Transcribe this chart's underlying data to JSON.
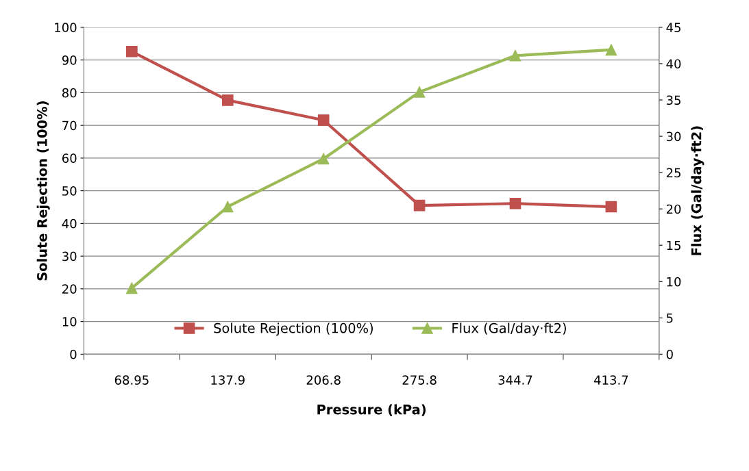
{
  "chart_data": {
    "type": "line",
    "xlabel": "Pressure (kPa)",
    "ylabel": "Solute Rejection (100%)",
    "y2label": "Flux (Gal/day·ft2)",
    "categories": [
      "68.95",
      "137.9",
      "206.8",
      "275.8",
      "344.7",
      "413.7"
    ],
    "series": [
      {
        "name": "Solute Rejection (100%)",
        "color": "#c0504d",
        "marker": "square",
        "values": [
          92.6,
          77.7,
          71.6,
          45.5,
          46.1,
          45.1
        ]
      },
      {
        "name": "Flux (Gal/day·ft2)",
        "color": "#9bbb59",
        "marker": "triangle",
        "axis": "y2",
        "values": [
          9.1,
          20.3,
          26.9,
          36.1,
          41.1,
          41.9
        ]
      }
    ],
    "ylim": [
      0,
      100
    ],
    "yticks": [
      0,
      10,
      20,
      30,
      40,
      50,
      60,
      70,
      80,
      90,
      100
    ],
    "y2lim": [
      0,
      45
    ],
    "y2ticks": [
      0,
      5,
      10,
      15,
      20,
      25,
      30,
      35,
      40,
      45
    ],
    "grid": "y",
    "legend": "bottom",
    "line_style": "solid"
  }
}
